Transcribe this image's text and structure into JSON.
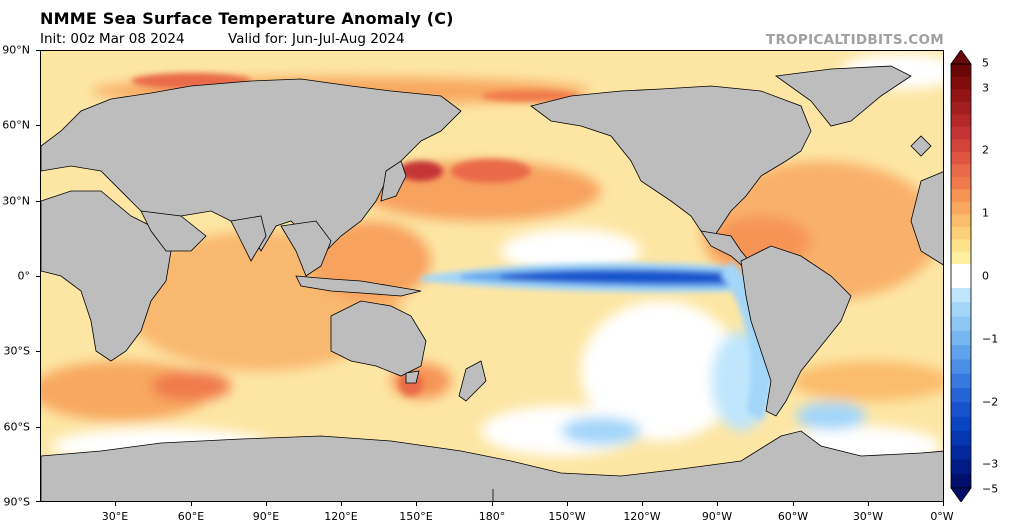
{
  "header": {
    "title": "NMME Sea Surface Temperature Anomaly (C)",
    "init": "Init: 00z Mar 08 2024",
    "valid": "Valid for: Jun-Jul-Aug 2024",
    "watermark": "TROPICALTIDBITS.COM"
  },
  "axes": {
    "lat_labels": [
      "90°N",
      "60°N",
      "30°N",
      "0°",
      "30°S",
      "60°S",
      "90°S"
    ],
    "lon_labels": [
      "30°E",
      "60°E",
      "90°E",
      "120°E",
      "150°E",
      "180°",
      "150°W",
      "120°W",
      "90°W",
      "60°W",
      "30°W",
      "0°W"
    ]
  },
  "colorbar": {
    "labels": [
      "5",
      "3",
      "2",
      "1",
      "0",
      "−1",
      "−2",
      "−3",
      "−5"
    ],
    "warm_colors": [
      "#ffefa0",
      "#fde28c",
      "#fcd07a",
      "#fbbc6c",
      "#f8a860",
      "#f69456",
      "#f07a4c",
      "#e96a48",
      "#df5540",
      "#d2433a",
      "#c43434",
      "#b42828",
      "#a31e1e",
      "#921414",
      "#800c0c",
      "#6a0606"
    ],
    "cool_colors": [
      "#bfe6fc",
      "#a3d6f9",
      "#8ec6f5",
      "#76b6f1",
      "#5fa3ec",
      "#4b8ee6",
      "#3779df",
      "#2464d6",
      "#1552cc",
      "#0a44c0",
      "#0636b0",
      "#04299c",
      "#021c86",
      "#010f6c"
    ],
    "neutral": "#ffffff"
  },
  "colors": {
    "land": "#bdbdbd",
    "coast": "#000000",
    "warm": "#f7a85c",
    "light_warm": "#fde6a4",
    "cold": "#2f6fe0",
    "cool": "#a3d6f9"
  }
}
